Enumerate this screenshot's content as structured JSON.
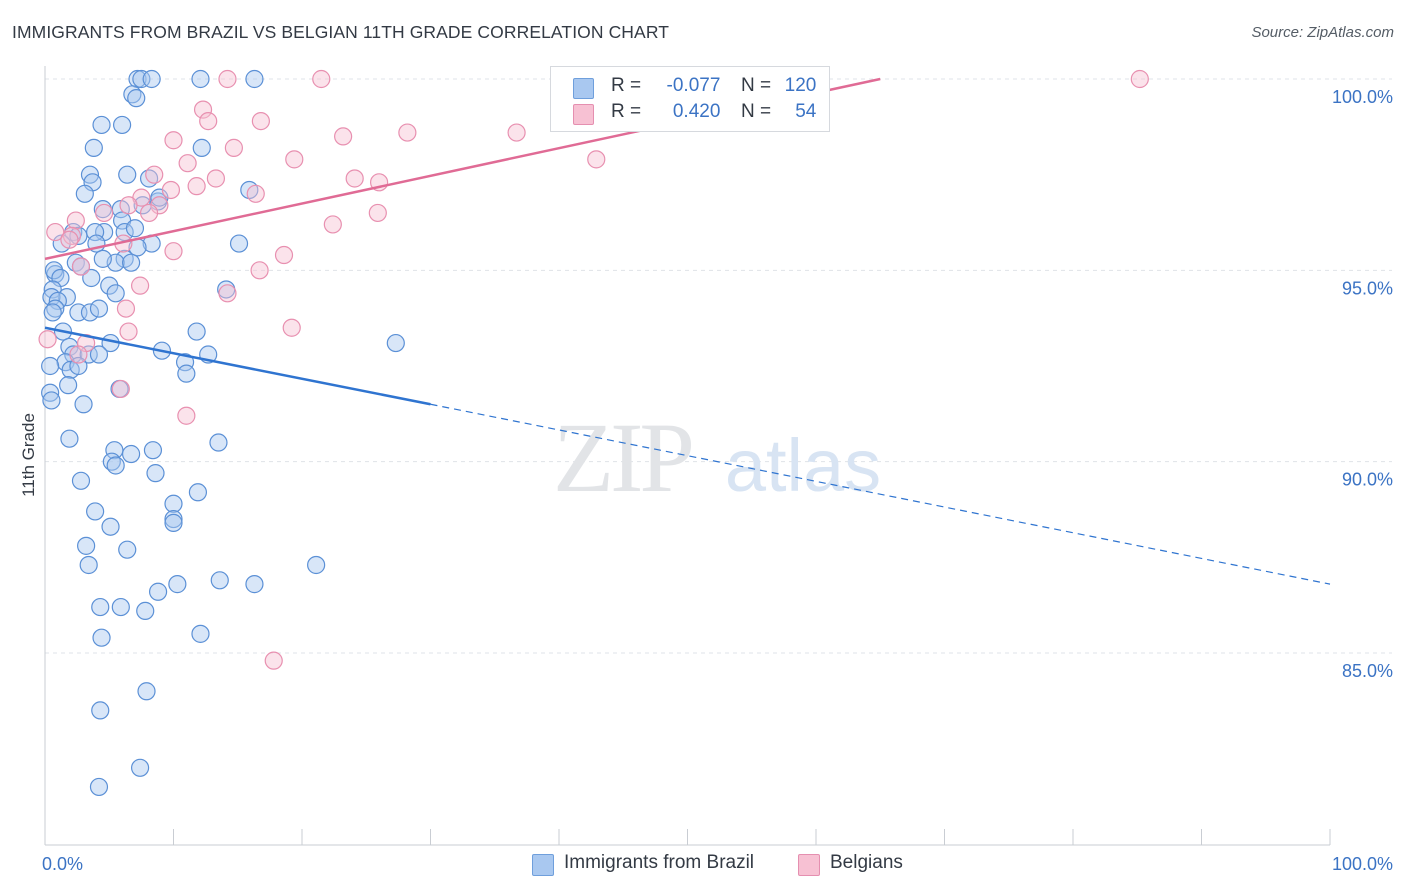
{
  "title": "IMMIGRANTS FROM BRAZIL VS BELGIAN 11TH GRADE CORRELATION CHART",
  "source": "Source: ZipAtlas.com",
  "colors": {
    "blue": "#3b73c4",
    "blue_fill": "#a9c8f0",
    "blue_line": "#2f74d0",
    "pink": "#e06b95",
    "pink_fill": "#f7c1d3",
    "pink_line": "#e06b95",
    "grid": "#dfe3e8"
  },
  "legend": {
    "rows": [
      {
        "r_label": "R =",
        "r_value": "-0.077",
        "n_label": "N =",
        "n_value": "120"
      },
      {
        "r_label": "R =",
        "r_value": "0.420",
        "n_label": "N =",
        "n_value": "54"
      }
    ]
  },
  "bottom_legend": {
    "series1": "Immigrants from Brazil",
    "series2": "Belgians"
  },
  "watermark": {
    "part1": "ZIP",
    "part2": "atlas"
  },
  "chart_data": {
    "type": "scatter",
    "title": "IMMIGRANTS FROM BRAZIL VS BELGIAN 11TH GRADE CORRELATION CHART",
    "xlabel": "",
    "ylabel": "11th Grade",
    "xlim": [
      0,
      100
    ],
    "ylim": [
      80.3,
      100.5
    ],
    "x_tick_labels": [
      "0.0%",
      "100.0%"
    ],
    "y_ticks": [
      85,
      90,
      95,
      100
    ],
    "y_tick_labels": [
      "85.0%",
      "90.0%",
      "95.0%",
      "100.0%"
    ],
    "grid": true,
    "series": [
      {
        "name": "Immigrants from Brazil",
        "r": -0.077,
        "n": 120,
        "trend": {
          "x0": 0,
          "y0": 93.5,
          "x1": 30,
          "y1": 91.5,
          "dashed_to_x": 100,
          "dashed_to_y": 86.8
        },
        "points": [
          [
            7.2,
            100
          ],
          [
            7.5,
            100
          ],
          [
            8.3,
            100
          ],
          [
            12.1,
            100
          ],
          [
            16.3,
            100
          ],
          [
            6.8,
            99.6
          ],
          [
            7.1,
            99.5
          ],
          [
            4.4,
            98.8
          ],
          [
            6.0,
            98.8
          ],
          [
            3.8,
            98.2
          ],
          [
            12.2,
            98.2
          ],
          [
            3.5,
            97.5
          ],
          [
            6.4,
            97.5
          ],
          [
            8.1,
            97.4
          ],
          [
            3.7,
            97.3
          ],
          [
            3.1,
            97.0
          ],
          [
            15.9,
            97.1
          ],
          [
            8.8,
            96.8
          ],
          [
            8.9,
            96.9
          ],
          [
            5.9,
            96.6
          ],
          [
            7.6,
            96.7
          ],
          [
            4.5,
            96.6
          ],
          [
            6.0,
            96.3
          ],
          [
            4.6,
            96.0
          ],
          [
            6.2,
            96.0
          ],
          [
            2.2,
            96.0
          ],
          [
            2.6,
            95.9
          ],
          [
            7.0,
            96.1
          ],
          [
            3.9,
            96.0
          ],
          [
            1.3,
            95.7
          ],
          [
            4.0,
            95.7
          ],
          [
            8.3,
            95.7
          ],
          [
            15.1,
            95.7
          ],
          [
            7.2,
            95.6
          ],
          [
            6.2,
            95.3
          ],
          [
            5.5,
            95.2
          ],
          [
            4.5,
            95.3
          ],
          [
            6.7,
            95.2
          ],
          [
            2.4,
            95.2
          ],
          [
            2.8,
            95.1
          ],
          [
            0.8,
            94.9
          ],
          [
            0.7,
            95.0
          ],
          [
            1.2,
            94.8
          ],
          [
            3.6,
            94.8
          ],
          [
            0.6,
            94.5
          ],
          [
            5.0,
            94.6
          ],
          [
            14.1,
            94.5
          ],
          [
            1.7,
            94.3
          ],
          [
            0.5,
            94.3
          ],
          [
            1.0,
            94.2
          ],
          [
            5.5,
            94.4
          ],
          [
            0.8,
            94.0
          ],
          [
            0.6,
            93.9
          ],
          [
            2.6,
            93.9
          ],
          [
            3.5,
            93.9
          ],
          [
            4.2,
            94.0
          ],
          [
            1.4,
            93.4
          ],
          [
            11.8,
            93.4
          ],
          [
            5.1,
            93.1
          ],
          [
            27.3,
            93.1
          ],
          [
            1.9,
            93.0
          ],
          [
            2.2,
            92.8
          ],
          [
            3.4,
            92.8
          ],
          [
            4.2,
            92.8
          ],
          [
            9.1,
            92.9
          ],
          [
            12.7,
            92.8
          ],
          [
            10.9,
            92.6
          ],
          [
            1.6,
            92.6
          ],
          [
            0.4,
            92.5
          ],
          [
            2.0,
            92.4
          ],
          [
            2.6,
            92.5
          ],
          [
            11.0,
            92.3
          ],
          [
            1.8,
            92.0
          ],
          [
            5.8,
            91.9
          ],
          [
            0.4,
            91.8
          ],
          [
            0.5,
            91.6
          ],
          [
            3.0,
            91.5
          ],
          [
            1.9,
            90.6
          ],
          [
            13.5,
            90.5
          ],
          [
            5.4,
            90.3
          ],
          [
            8.4,
            90.3
          ],
          [
            6.7,
            90.2
          ],
          [
            5.2,
            90.0
          ],
          [
            5.5,
            89.9
          ],
          [
            8.6,
            89.7
          ],
          [
            2.8,
            89.5
          ],
          [
            11.9,
            89.2
          ],
          [
            10.0,
            88.9
          ],
          [
            3.9,
            88.7
          ],
          [
            10.0,
            88.5
          ],
          [
            10.0,
            88.4
          ],
          [
            5.1,
            88.3
          ],
          [
            3.2,
            87.8
          ],
          [
            6.4,
            87.7
          ],
          [
            21.1,
            87.3
          ],
          [
            3.4,
            87.3
          ],
          [
            13.6,
            86.9
          ],
          [
            16.3,
            86.8
          ],
          [
            10.3,
            86.8
          ],
          [
            8.8,
            86.6
          ],
          [
            4.3,
            86.2
          ],
          [
            5.9,
            86.2
          ],
          [
            7.8,
            86.1
          ],
          [
            12.1,
            85.5
          ],
          [
            4.4,
            85.4
          ],
          [
            7.9,
            84.0
          ],
          [
            4.3,
            83.5
          ],
          [
            7.4,
            82.0
          ],
          [
            4.2,
            81.5
          ]
        ]
      },
      {
        "name": "Belgians",
        "r": 0.42,
        "n": 54,
        "trend": {
          "x0": 0,
          "y0": 95.3,
          "x1": 65,
          "y1": 100
        },
        "points": [
          [
            14.2,
            100
          ],
          [
            21.5,
            100
          ],
          [
            85.2,
            100
          ],
          [
            12.3,
            99.2
          ],
          [
            12.7,
            98.9
          ],
          [
            16.8,
            98.9
          ],
          [
            10.0,
            98.4
          ],
          [
            23.2,
            98.5
          ],
          [
            28.2,
            98.6
          ],
          [
            36.7,
            98.6
          ],
          [
            14.7,
            98.2
          ],
          [
            19.4,
            97.9
          ],
          [
            11.1,
            97.8
          ],
          [
            42.9,
            97.9
          ],
          [
            8.5,
            97.5
          ],
          [
            13.3,
            97.4
          ],
          [
            26.0,
            97.3
          ],
          [
            24.1,
            97.4
          ],
          [
            9.8,
            97.1
          ],
          [
            11.8,
            97.2
          ],
          [
            16.4,
            97.0
          ],
          [
            7.5,
            96.9
          ],
          [
            8.9,
            96.7
          ],
          [
            6.5,
            96.7
          ],
          [
            4.6,
            96.5
          ],
          [
            25.9,
            96.5
          ],
          [
            2.4,
            96.3
          ],
          [
            8.1,
            96.5
          ],
          [
            22.4,
            96.2
          ],
          [
            0.8,
            96.0
          ],
          [
            2.1,
            95.9
          ],
          [
            1.9,
            95.8
          ],
          [
            6.1,
            95.7
          ],
          [
            10.0,
            95.5
          ],
          [
            18.6,
            95.4
          ],
          [
            2.8,
            95.1
          ],
          [
            16.7,
            95.0
          ],
          [
            7.4,
            94.6
          ],
          [
            14.2,
            94.4
          ],
          [
            6.3,
            94.0
          ],
          [
            19.2,
            93.5
          ],
          [
            6.5,
            93.4
          ],
          [
            0.2,
            93.2
          ],
          [
            3.2,
            93.1
          ],
          [
            2.6,
            92.8
          ],
          [
            5.9,
            91.9
          ],
          [
            11.0,
            91.2
          ],
          [
            17.8,
            84.8
          ]
        ]
      }
    ]
  }
}
